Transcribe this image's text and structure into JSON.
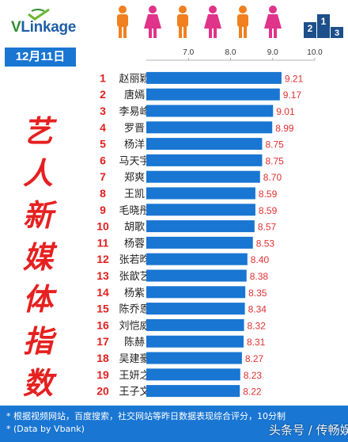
{
  "brand": {
    "logo_text_v": "V",
    "logo_text_rest": "Linkage"
  },
  "podium_digits": [
    "2",
    "1",
    "3"
  ],
  "date_label": "12月11日",
  "vertical_title": [
    "艺",
    "人",
    "新",
    "媒",
    "体",
    "指",
    "数"
  ],
  "footer": {
    "line1": "* 根据视频网站，百度搜索，社交网站等昨日数据表现综合评分，10分制",
    "line2": "* (Data by Vbank)"
  },
  "watermark": "头条号 / 传畅娱乐",
  "colors": {
    "bar": "#1976d2",
    "rank": "#e02020",
    "value": "#e03030",
    "accent_blue": "#1976d2"
  },
  "chart_data": {
    "type": "bar",
    "orientation": "horizontal",
    "xlim": [
      6.0,
      10.0
    ],
    "xticks": [
      "7.0",
      "8.0",
      "9.0",
      "10.0"
    ],
    "ranks": [
      "1",
      "2",
      "3",
      "4",
      "5",
      "6",
      "7",
      "8",
      "9",
      "10",
      "11",
      "12",
      "13",
      "14",
      "15",
      "16",
      "17",
      "18",
      "19",
      "20"
    ],
    "categories": [
      "赵丽颖",
      "唐嫣",
      "李易峰",
      "罗晋",
      "杨洋",
      "马天宇",
      "郑爽",
      "王凯",
      "毛晓彤",
      "胡歌",
      "杨蓉",
      "张若昀",
      "张歆艺",
      "杨紫",
      "陈乔恩",
      "刘恺威",
      "陈赫",
      "吴建豪",
      "王妍之",
      "王子文"
    ],
    "values": [
      9.21,
      9.17,
      9.01,
      8.99,
      8.75,
      8.75,
      8.7,
      8.59,
      8.59,
      8.57,
      8.53,
      8.4,
      8.38,
      8.35,
      8.34,
      8.32,
      8.31,
      8.27,
      8.23,
      8.22
    ],
    "value_labels": [
      "9.21",
      "9.17",
      "9.01",
      "8.99",
      "8.75",
      "8.75",
      "8.70",
      "8.59",
      "8.59",
      "8.57",
      "8.53",
      "8.40",
      "8.38",
      "8.35",
      "8.34",
      "8.32",
      "8.31",
      "8.27",
      "8.23",
      "8.22"
    ]
  }
}
